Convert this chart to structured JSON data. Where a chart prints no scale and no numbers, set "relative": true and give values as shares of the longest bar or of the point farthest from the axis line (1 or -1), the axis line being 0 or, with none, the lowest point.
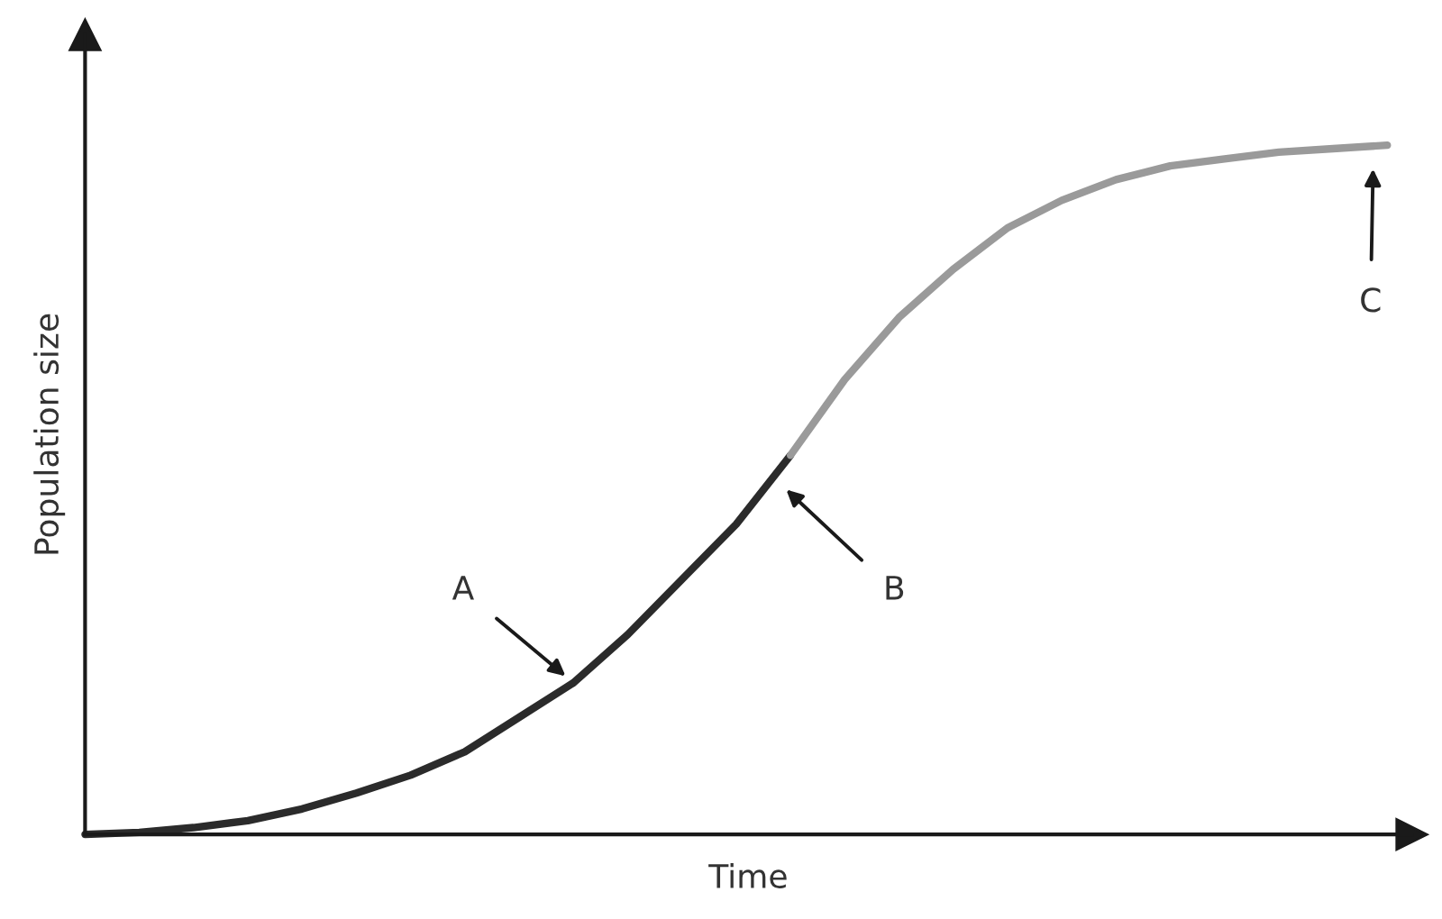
{
  "chart_data": {
    "type": "line",
    "relative": true,
    "xlabel": "Time",
    "ylabel": "Population size",
    "categories": [
      null,
      null,
      null,
      null,
      null,
      null,
      null,
      null,
      null,
      null,
      null,
      null,
      null,
      null,
      null,
      null,
      null,
      null,
      null,
      null,
      null,
      null,
      null,
      null,
      null
    ],
    "series": [
      {
        "color": "#2b2b2b",
        "values": [
          0,
          0.003,
          0.01,
          0.02,
          0.037,
          0.06,
          0.086,
          0.12,
          0.17,
          0.22,
          0.29,
          0.37,
          0.45,
          0.55,
          null,
          null,
          null,
          null,
          null,
          null,
          null,
          null,
          null,
          null,
          null
        ]
      },
      {
        "color": "#9a9a9a",
        "values": [
          null,
          null,
          null,
          null,
          null,
          null,
          null,
          null,
          null,
          null,
          null,
          null,
          null,
          0.55,
          0.66,
          0.75,
          0.82,
          0.88,
          0.92,
          0.95,
          0.97,
          0.98,
          0.99,
          0.995,
          1
        ]
      }
    ],
    "annotations": [
      "A",
      "B",
      "C"
    ],
    "marker": "none",
    "line_style": "solid",
    "grid": false,
    "legend": false
  }
}
